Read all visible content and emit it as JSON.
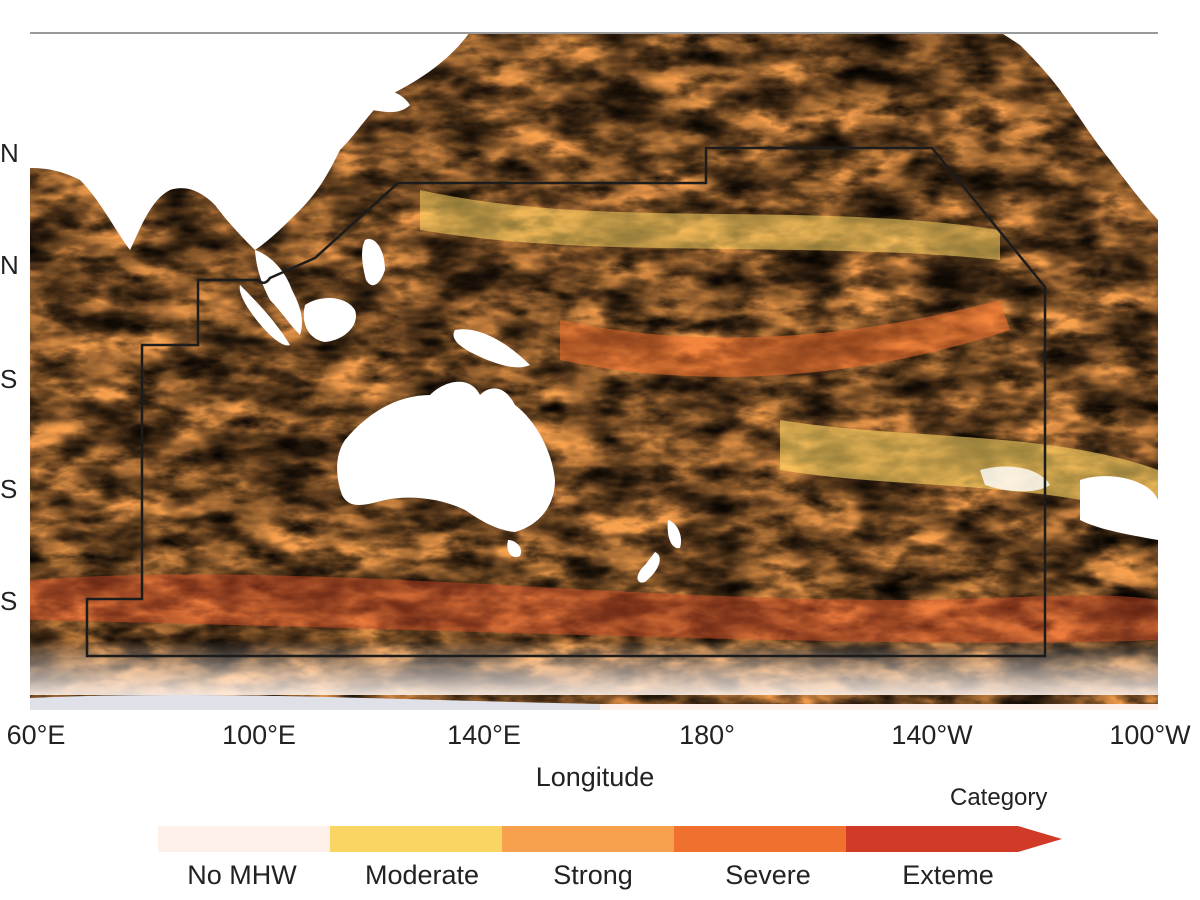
{
  "map": {
    "latitude_labels": [
      "N",
      "N",
      "S",
      "S",
      "S"
    ],
    "longitude_labels": [
      "60°E",
      "100°E",
      "140°E",
      "180°",
      "140°W",
      "100°W"
    ],
    "x_axis_title": "Longitude"
  },
  "legend": {
    "title": "Category",
    "categories": [
      {
        "label": "No MHW",
        "color": "#fdf1ea"
      },
      {
        "label": "Moderate",
        "color": "#fbd564"
      },
      {
        "label": "Strong",
        "color": "#f7a04e"
      },
      {
        "label": "Severe",
        "color": "#f0702f"
      },
      {
        "label": "Exteme",
        "color": "#d13a27"
      }
    ]
  },
  "colors": {
    "land": "#ffffff",
    "outline": "#1c1c1c",
    "sea_ice": "#dfe0e8"
  }
}
